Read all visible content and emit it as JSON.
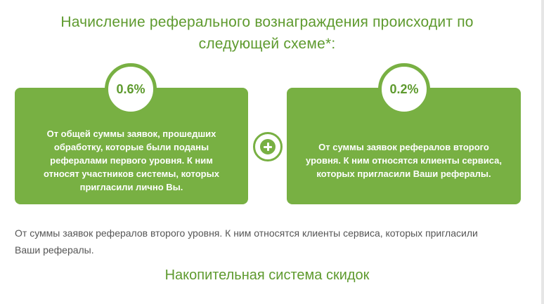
{
  "heading": "Начисление реферального вознаграждения происходит по следующей схеме*:",
  "cards": [
    {
      "percent": "0.6%",
      "text": "От общей суммы заявок, прошедших обработку, которые были поданы рефералами первого уровня. К ним относят участников системы, которых пригласили лично Вы."
    },
    {
      "percent": "0.2%",
      "text": "От суммы заявок рефералов второго уровня. К ним относятся клиенты сервиса, которых пригласили Ваши рефералы."
    }
  ],
  "plus_icon": "plus-icon",
  "note": "От суммы заявок рефералов второго уровня. К ним относятся клиенты сервиса, которых пригласили Ваши рефералы.",
  "subheading": "Накопительная система скидок",
  "colors": {
    "accent": "#78b043",
    "heading": "#5e9a2e",
    "text": "#555555"
  }
}
